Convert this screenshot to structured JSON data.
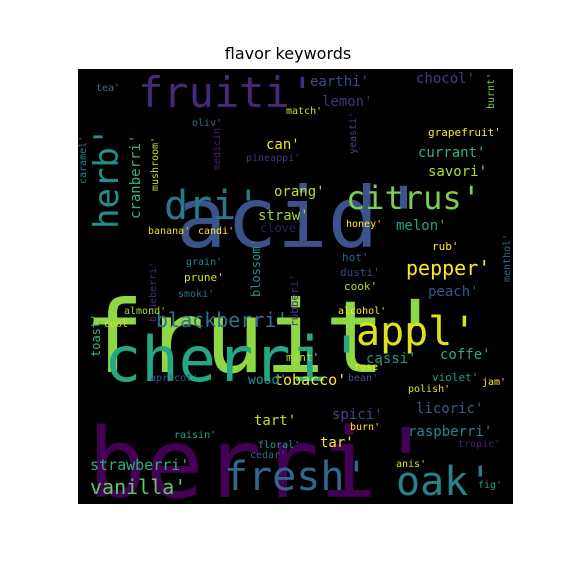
{
  "chart_data": {
    "type": "wordcloud",
    "title": "flavor keywords",
    "background": "#000000",
    "words": [
      {
        "text": "fruit'",
        "size": 100,
        "color": "#8fd744"
      },
      {
        "text": "berri'",
        "size": 96,
        "color": "#440154"
      },
      {
        "text": "acid'",
        "size": 84,
        "color": "#3b528b"
      },
      {
        "text": "cherri'",
        "size": 62,
        "color": "#22a884"
      },
      {
        "text": "fruiti'",
        "size": 42,
        "color": "#482878"
      },
      {
        "text": "fresh'",
        "size": 40,
        "color": "#31688e"
      },
      {
        "text": "oak'",
        "size": 40,
        "color": "#26828e"
      },
      {
        "text": "dri'",
        "size": 40,
        "color": "#2a788e"
      },
      {
        "text": "appl'",
        "size": 40,
        "color": "#dde318"
      },
      {
        "text": "herb'",
        "size": 34,
        "color": "#21918c"
      },
      {
        "text": "citrus'",
        "size": 32,
        "color": "#7ad151"
      },
      {
        "text": "pepper'",
        "size": 20,
        "color": "#fde725"
      },
      {
        "text": "blackberri'",
        "size": 20,
        "color": "#2c728e"
      },
      {
        "text": "vanilla'",
        "size": 20,
        "color": "#5ec962"
      },
      {
        "text": "strawberri'",
        "size": 15,
        "color": "#2ab07f"
      },
      {
        "text": "tobacco'",
        "size": 15,
        "color": "#fde725"
      },
      {
        "text": "cranberri'",
        "size": 14,
        "color": "#35b779"
      },
      {
        "text": "straw'",
        "size": 14,
        "color": "#9fda3a"
      },
      {
        "text": "orang'",
        "size": 14,
        "color": "#bddf26"
      },
      {
        "text": "savori'",
        "size": 14,
        "color": "#addc30"
      },
      {
        "text": "currant'",
        "size": 14,
        "color": "#2fb47c"
      },
      {
        "text": "earthi'",
        "size": 14,
        "color": "#3e4989"
      },
      {
        "text": "chocol'",
        "size": 14,
        "color": "#433e85"
      },
      {
        "text": "lemon'",
        "size": 14,
        "color": "#46327e"
      },
      {
        "text": "can'",
        "size": 14,
        "color": "#ecee1e"
      },
      {
        "text": "melon'",
        "size": 14,
        "color": "#20a386"
      },
      {
        "text": "peach'",
        "size": 14,
        "color": "#38588c"
      },
      {
        "text": "cassi'",
        "size": 14,
        "color": "#1f9e89"
      },
      {
        "text": "coffe'",
        "size": 14,
        "color": "#29af7f"
      },
      {
        "text": "wood'",
        "size": 13,
        "color": "#1e9b8a"
      },
      {
        "text": "licoric'",
        "size": 14,
        "color": "#365c8d"
      },
      {
        "text": "raspberri'",
        "size": 14,
        "color": "#23898e"
      },
      {
        "text": "tart'",
        "size": 14,
        "color": "#c2df23"
      },
      {
        "text": "spici'",
        "size": 14,
        "color": "#3f4788"
      },
      {
        "text": "tar'",
        "size": 14,
        "color": "#fde725"
      },
      {
        "text": "clove'",
        "size": 12,
        "color": "#2d1e5c"
      },
      {
        "text": "toast'",
        "size": 12,
        "color": "#3aba76"
      },
      {
        "text": "mint'",
        "size": 11,
        "color": "#bade28"
      },
      {
        "text": "grapefruit'",
        "size": 11,
        "color": "#fde725"
      },
      {
        "text": "burnt'",
        "size": 10,
        "color": "#7ad151"
      },
      {
        "text": "menthol'",
        "size": 10,
        "color": "#31688e"
      },
      {
        "text": "mushroom'",
        "size": 10,
        "color": "#bddf26"
      },
      {
        "text": "caramel'",
        "size": 10,
        "color": "#26828e"
      },
      {
        "text": "tea'",
        "size": 10,
        "color": "#2a788e"
      },
      {
        "text": "oliv'",
        "size": 10,
        "color": "#2c728e"
      },
      {
        "text": "match'",
        "size": 10,
        "color": "#c8e020"
      },
      {
        "text": "medicin'",
        "size": 10,
        "color": "#481f70"
      },
      {
        "text": "pineappi'",
        "size": 10,
        "color": "#453781"
      },
      {
        "text": "yeasti'",
        "size": 10,
        "color": "#3e4989"
      },
      {
        "text": "banana'",
        "size": 10,
        "color": "#dde318"
      },
      {
        "text": "candi'",
        "size": 10,
        "color": "#fde725"
      },
      {
        "text": "honey'",
        "size": 10,
        "color": "#fde725"
      },
      {
        "text": "grain'",
        "size": 10,
        "color": "#26828e"
      },
      {
        "text": "prune'",
        "size": 11,
        "color": "#d8e219"
      },
      {
        "text": "smoki'",
        "size": 10,
        "color": "#2c728e"
      },
      {
        "text": "blueberri'",
        "size": 10,
        "color": "#472c7a"
      },
      {
        "text": "blossom'",
        "size": 12,
        "color": "#21918c"
      },
      {
        "text": "rubberi'",
        "size": 11,
        "color": "#46327e"
      },
      {
        "text": "hot'",
        "size": 11,
        "color": "#31688e"
      },
      {
        "text": "rub'",
        "size": 11,
        "color": "#fde725"
      },
      {
        "text": "dusti'",
        "size": 11,
        "color": "#3e4989"
      },
      {
        "text": "cook'",
        "size": 11,
        "color": "#addc30"
      },
      {
        "text": "almond'",
        "size": 10,
        "color": "#a5db36"
      },
      {
        "text": "cool'",
        "size": 10,
        "color": "#d8e219"
      },
      {
        "text": "alcohol'",
        "size": 10,
        "color": "#fde725"
      },
      {
        "text": "rose'",
        "size": 10,
        "color": "#fde725"
      },
      {
        "text": "bean'",
        "size": 10,
        "color": "#3b528b"
      },
      {
        "text": "apricot'",
        "size": 10,
        "color": "#39568c"
      },
      {
        "text": "violet'",
        "size": 11,
        "color": "#1f9e89"
      },
      {
        "text": "polish'",
        "size": 10,
        "color": "#dde318"
      },
      {
        "text": "jam'",
        "size": 10,
        "color": "#fde725"
      },
      {
        "text": "raisin'",
        "size": 10,
        "color": "#22a884"
      },
      {
        "text": "burn'",
        "size": 10,
        "color": "#fde725"
      },
      {
        "text": "floral'",
        "size": 10,
        "color": "#1fa187"
      },
      {
        "text": "cedar'",
        "size": 10,
        "color": "#31688e"
      },
      {
        "text": "tropic'",
        "size": 10,
        "color": "#482878"
      },
      {
        "text": "anis'",
        "size": 10,
        "color": "#dde318"
      },
      {
        "text": "fig'",
        "size": 10,
        "color": "#1fa187"
      }
    ]
  }
}
